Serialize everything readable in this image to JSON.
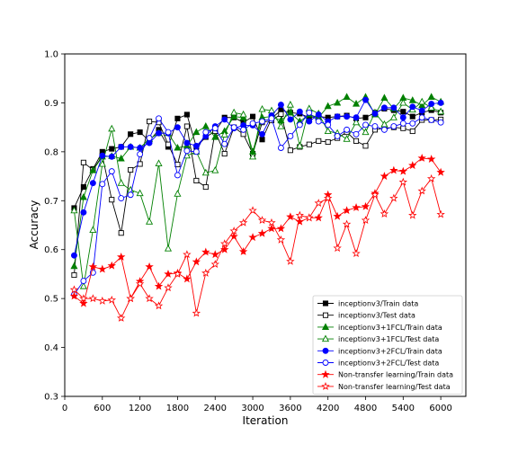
{
  "chart_data": {
    "type": "line",
    "xlabel": "Iteration",
    "ylabel": "Accuracy",
    "xlim": [
      0,
      6400
    ],
    "ylim": [
      0.3,
      1.0
    ],
    "xticks": [
      0,
      600,
      1200,
      1800,
      2400,
      3000,
      3600,
      4200,
      4800,
      5400,
      6000
    ],
    "yticks": [
      0.3,
      0.4,
      0.5,
      0.6,
      0.7,
      0.8,
      0.9,
      1.0
    ],
    "xtick_labels": [
      "0",
      "600",
      "1200",
      "1800",
      "2400",
      "3000",
      "3600",
      "4200",
      "4800",
      "5400",
      "6000"
    ],
    "ytick_labels": [
      "0.3",
      "0.4",
      "0.5",
      "0.6",
      "0.7",
      "0.8",
      "0.9",
      "1.0"
    ],
    "legend_position": "lower-right",
    "grid": false,
    "x": [
      150,
      300,
      450,
      600,
      750,
      900,
      1050,
      1200,
      1350,
      1500,
      1650,
      1800,
      1950,
      2100,
      2250,
      2400,
      2550,
      2700,
      2850,
      3000,
      3150,
      3300,
      3450,
      3600,
      3750,
      3900,
      4050,
      4200,
      4350,
      4500,
      4650,
      4800,
      4950,
      5100,
      5250,
      5400,
      5550,
      5700,
      5850,
      6000
    ],
    "series": [
      {
        "name": "inceptionv3/Train data",
        "color": "#000000",
        "marker": "square",
        "filled": true,
        "values": [
          0.685,
          0.728,
          0.765,
          0.8,
          0.806,
          0.81,
          0.836,
          0.84,
          0.822,
          0.845,
          0.81,
          0.868,
          0.876,
          0.81,
          0.83,
          0.842,
          0.87,
          0.87,
          0.86,
          0.872,
          0.825,
          0.868,
          0.885,
          0.88,
          0.878,
          0.87,
          0.872,
          0.87,
          0.872,
          0.874,
          0.868,
          0.87,
          0.88,
          0.888,
          0.885,
          0.882,
          0.872,
          0.88,
          0.885,
          0.88
        ]
      },
      {
        "name": "inceptionv3/Test data",
        "color": "#000000",
        "marker": "square",
        "filled": false,
        "values": [
          0.548,
          0.778,
          0.763,
          0.792,
          0.702,
          0.634,
          0.763,
          0.775,
          0.862,
          0.86,
          0.815,
          0.774,
          0.852,
          0.741,
          0.728,
          0.842,
          0.796,
          0.85,
          0.836,
          0.796,
          0.86,
          0.864,
          0.877,
          0.803,
          0.81,
          0.815,
          0.822,
          0.82,
          0.828,
          0.84,
          0.822,
          0.812,
          0.845,
          0.848,
          0.85,
          0.848,
          0.842,
          0.865,
          0.865,
          0.866
        ]
      },
      {
        "name": "inceptionv3+1FCL/Train data",
        "color": "#008000",
        "marker": "triangle",
        "filled": true,
        "values": [
          0.566,
          0.707,
          0.762,
          0.79,
          0.791,
          0.786,
          0.81,
          0.808,
          0.826,
          0.838,
          0.838,
          0.808,
          0.812,
          0.84,
          0.852,
          0.83,
          0.842,
          0.872,
          0.87,
          0.8,
          0.87,
          0.872,
          0.864,
          0.88,
          0.862,
          0.876,
          0.87,
          0.893,
          0.9,
          0.912,
          0.898,
          0.912,
          0.876,
          0.91,
          0.888,
          0.91,
          0.905,
          0.895,
          0.912,
          0.902
        ]
      },
      {
        "name": "inceptionv3+1FCL/Test data",
        "color": "#008000",
        "marker": "triangle",
        "filled": false,
        "values": [
          0.68,
          0.525,
          0.64,
          0.775,
          0.847,
          0.736,
          0.722,
          0.715,
          0.657,
          0.776,
          0.602,
          0.714,
          0.792,
          0.8,
          0.757,
          0.762,
          0.835,
          0.88,
          0.876,
          0.79,
          0.887,
          0.884,
          0.852,
          0.896,
          0.812,
          0.888,
          0.878,
          0.842,
          0.838,
          0.826,
          0.86,
          0.84,
          0.88,
          0.856,
          0.87,
          0.9,
          0.886,
          0.902,
          0.89,
          0.882
        ]
      },
      {
        "name": "inceptionv3+2FCL/Train data",
        "color": "#0000ff",
        "marker": "circle",
        "filled": true,
        "values": [
          0.588,
          0.676,
          0.736,
          0.792,
          0.79,
          0.81,
          0.81,
          0.808,
          0.818,
          0.838,
          0.838,
          0.85,
          0.818,
          0.812,
          0.832,
          0.852,
          0.866,
          0.848,
          0.854,
          0.854,
          0.836,
          0.874,
          0.896,
          0.866,
          0.882,
          0.862,
          0.876,
          0.862,
          0.872,
          0.872,
          0.87,
          0.906,
          0.878,
          0.89,
          0.89,
          0.87,
          0.892,
          0.884,
          0.898,
          0.9
        ]
      },
      {
        "name": "inceptionv3+2FCL/Test data",
        "color": "#0000ff",
        "marker": "circle",
        "filled": false,
        "values": [
          0.508,
          0.536,
          0.553,
          0.734,
          0.76,
          0.705,
          0.712,
          0.795,
          0.828,
          0.868,
          0.84,
          0.752,
          0.802,
          0.8,
          0.84,
          0.848,
          0.816,
          0.85,
          0.845,
          0.858,
          0.862,
          0.868,
          0.808,
          0.832,
          0.855,
          0.88,
          0.862,
          0.855,
          0.832,
          0.845,
          0.836,
          0.855,
          0.852,
          0.845,
          0.852,
          0.858,
          0.858,
          0.87,
          0.865,
          0.86
        ]
      },
      {
        "name": "Non-transfer learning/Train data",
        "color": "#ff0000",
        "marker": "star",
        "filled": true,
        "values": [
          0.505,
          0.49,
          0.565,
          0.56,
          0.567,
          0.585,
          0.5,
          0.535,
          0.565,
          0.525,
          0.55,
          0.552,
          0.54,
          0.575,
          0.595,
          0.59,
          0.6,
          0.627,
          0.596,
          0.625,
          0.633,
          0.643,
          0.643,
          0.667,
          0.657,
          0.665,
          0.665,
          0.712,
          0.668,
          0.68,
          0.686,
          0.688,
          0.715,
          0.75,
          0.762,
          0.76,
          0.772,
          0.787,
          0.785,
          0.758
        ]
      },
      {
        "name": "Non-transfer learning/Test data",
        "color": "#ff0000",
        "marker": "star",
        "filled": false,
        "values": [
          0.518,
          0.5,
          0.5,
          0.495,
          0.497,
          0.46,
          0.5,
          0.53,
          0.5,
          0.485,
          0.522,
          0.55,
          0.59,
          0.47,
          0.552,
          0.57,
          0.612,
          0.638,
          0.655,
          0.68,
          0.66,
          0.655,
          0.62,
          0.576,
          0.67,
          0.665,
          0.695,
          0.705,
          0.603,
          0.652,
          0.592,
          0.66,
          0.712,
          0.673,
          0.705,
          0.738,
          0.67,
          0.72,
          0.745,
          0.672
        ]
      }
    ]
  }
}
